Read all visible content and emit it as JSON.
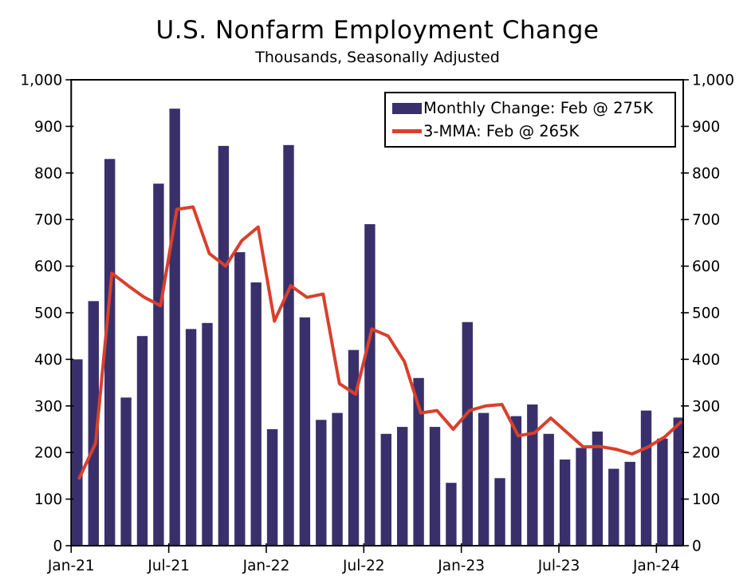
{
  "chart_data": {
    "type": "bar",
    "title": "U.S. Nonfarm Employment Change",
    "subtitle": "Thousands, Seasonally Adjusted",
    "categories": [
      "Jan-21",
      "Feb-21",
      "Mar-21",
      "Apr-21",
      "May-21",
      "Jun-21",
      "Jul-21",
      "Aug-21",
      "Sep-21",
      "Oct-21",
      "Nov-21",
      "Dec-21",
      "Jan-22",
      "Feb-22",
      "Mar-22",
      "Apr-22",
      "May-22",
      "Jun-22",
      "Jul-22",
      "Aug-22",
      "Sep-22",
      "Oct-22",
      "Nov-22",
      "Dec-22",
      "Jan-23",
      "Feb-23",
      "Mar-23",
      "Apr-23",
      "May-23",
      "Jun-23",
      "Jul-23",
      "Aug-23",
      "Sep-23",
      "Oct-23",
      "Nov-23",
      "Dec-23",
      "Jan-24",
      "Feb-24"
    ],
    "series": [
      {
        "name": "Monthly Change: Feb @ 275K",
        "type": "bar",
        "color": "#39306B",
        "values": [
          400,
          525,
          830,
          318,
          450,
          777,
          938,
          465,
          478,
          858,
          630,
          565,
          250,
          860,
          490,
          270,
          285,
          420,
          690,
          240,
          255,
          360,
          255,
          135,
          480,
          285,
          145,
          278,
          303,
          240,
          185,
          210,
          245,
          165,
          180,
          290,
          230,
          275
        ]
      },
      {
        "name": "3-MMA: Feb @ 265K",
        "type": "line",
        "color": "#D8402C",
        "values": [
          145,
          220,
          585,
          558,
          533,
          515,
          722,
          727,
          627,
          600,
          655,
          684,
          482,
          558,
          533,
          540,
          348,
          325,
          465,
          450,
          395,
          285,
          290,
          250,
          290,
          300,
          303,
          236,
          242,
          274,
          243,
          212,
          213,
          207,
          197,
          212,
          233,
          265
        ]
      }
    ],
    "ylim": [
      0,
      1000
    ],
    "y_ticks": [
      0,
      100,
      200,
      300,
      400,
      500,
      600,
      700,
      800,
      900,
      1000
    ],
    "y_tick_labels": [
      "0",
      "100",
      "200",
      "300",
      "400",
      "500",
      "600",
      "700",
      "800",
      "900",
      "1,000"
    ],
    "x_tick_positions": [
      0,
      6,
      12,
      18,
      24,
      30,
      36
    ],
    "x_tick_labels": [
      "Jan-21",
      "Jul-21",
      "Jan-22",
      "Jul-22",
      "Jan-23",
      "Jul-23",
      "Jan-24"
    ],
    "grid": false,
    "legend_position": "top-right",
    "dual_y_axis": true,
    "axis_color": "#000000",
    "background_color": "#FFFFFF"
  }
}
